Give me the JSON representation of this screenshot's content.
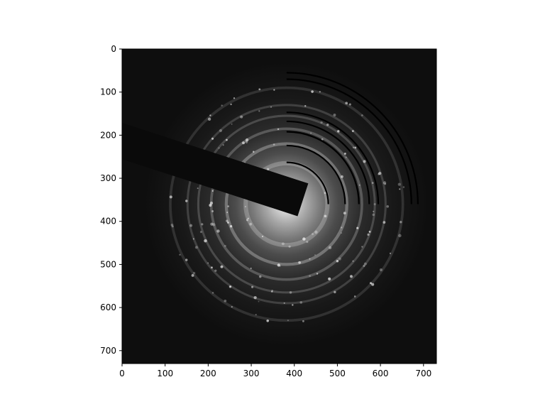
{
  "colors": {
    "background": "#ffffff",
    "image_field": "#0c0c0c",
    "beam_stop": "#0a0a0a",
    "arc_overlay": "#000000",
    "axis": "#000000"
  },
  "chart_data": {
    "type": "image",
    "xlim": [
      0,
      730
    ],
    "ylim": [
      730,
      0
    ],
    "x_ticks": [
      {
        "value": 0,
        "label": "0"
      },
      {
        "value": 100,
        "label": "100"
      },
      {
        "value": 200,
        "label": "200"
      },
      {
        "value": 300,
        "label": "300"
      },
      {
        "value": 400,
        "label": "400"
      },
      {
        "value": 500,
        "label": "500"
      },
      {
        "value": 600,
        "label": "600"
      },
      {
        "value": 700,
        "label": "700"
      }
    ],
    "y_ticks": [
      {
        "value": 0,
        "label": "0"
      },
      {
        "value": 100,
        "label": "100"
      },
      {
        "value": 200,
        "label": "200"
      },
      {
        "value": 300,
        "label": "300"
      },
      {
        "value": 400,
        "label": "400"
      },
      {
        "value": 500,
        "label": "500"
      },
      {
        "value": 600,
        "label": "600"
      },
      {
        "value": 700,
        "label": "700"
      }
    ],
    "pattern_center": [
      382,
      360
    ],
    "diffraction_ring_radii": [
      95,
      140,
      175,
      205,
      230,
      270
    ],
    "overlay_arcs": {
      "center": [
        382,
        360
      ],
      "radii": [
        97,
        136,
        168,
        192,
        213,
        290,
        305
      ]
    },
    "beam_stop": {
      "tip": [
        420,
        350
      ],
      "base_x": 0,
      "direction_deg": 198,
      "width": 80
    },
    "grid": false
  }
}
